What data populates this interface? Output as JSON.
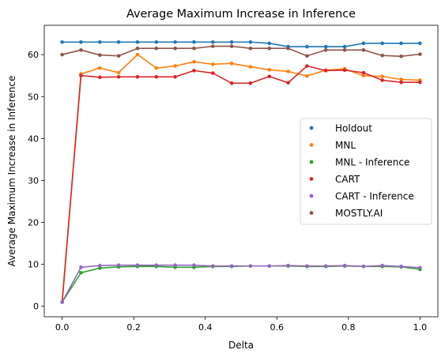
{
  "chart_data": {
    "type": "line",
    "title": "Average Maximum Increase in Inference",
    "xlabel": "Delta",
    "ylabel": "Average Maximum Increase in Inference",
    "xlim": [
      -0.05,
      1.05
    ],
    "ylim": [
      -2.5,
      67
    ],
    "xticks": [
      0.0,
      0.2,
      0.4,
      0.6,
      0.8,
      1.0
    ],
    "xtick_labels": [
      "0.0",
      "0.2",
      "0.4",
      "0.6",
      "0.8",
      "1.0"
    ],
    "yticks": [
      0,
      10,
      20,
      30,
      40,
      50,
      60
    ],
    "ytick_labels": [
      "0",
      "10",
      "20",
      "30",
      "40",
      "50",
      "60"
    ],
    "legend_position": "center-right",
    "grid": false,
    "x": [
      0.0,
      0.0526,
      0.1053,
      0.1579,
      0.2105,
      0.2632,
      0.3158,
      0.3684,
      0.4211,
      0.4737,
      0.5263,
      0.5789,
      0.6316,
      0.6842,
      0.7368,
      0.7895,
      0.8421,
      0.8947,
      0.9474,
      1.0
    ],
    "series": [
      {
        "name": "Holdout",
        "color": "#1f77b4",
        "values": [
          63.0,
          63.0,
          63.0,
          63.0,
          63.0,
          63.0,
          63.0,
          63.0,
          63.0,
          63.0,
          63.0,
          62.7,
          61.9,
          61.9,
          61.9,
          61.9,
          62.7,
          62.7,
          62.7,
          62.7
        ]
      },
      {
        "name": "MNL",
        "color": "#ff7f0e",
        "values": [
          1.0,
          55.4,
          56.8,
          55.7,
          60.0,
          56.8,
          57.3,
          58.3,
          57.7,
          57.9,
          57.1,
          56.4,
          56.0,
          54.9,
          56.3,
          56.6,
          55.0,
          54.8,
          54.1,
          53.9
        ]
      },
      {
        "name": "MNL - Inference",
        "color": "#2ca02c",
        "values": [
          1.0,
          8.0,
          9.1,
          9.4,
          9.5,
          9.5,
          9.3,
          9.3,
          9.5,
          9.5,
          9.6,
          9.6,
          9.6,
          9.5,
          9.5,
          9.6,
          9.5,
          9.5,
          9.4,
          8.8
        ]
      },
      {
        "name": "CART",
        "color": "#d62728",
        "values": [
          1.0,
          55.0,
          54.6,
          54.7,
          54.7,
          54.7,
          54.7,
          56.2,
          55.6,
          53.2,
          53.2,
          54.8,
          53.3,
          57.3,
          56.2,
          56.3,
          55.7,
          53.9,
          53.4,
          53.4
        ]
      },
      {
        "name": "CART - Inference",
        "color": "#9467bd",
        "values": [
          1.0,
          9.3,
          9.7,
          9.8,
          9.8,
          9.8,
          9.8,
          9.8,
          9.6,
          9.6,
          9.6,
          9.6,
          9.7,
          9.6,
          9.6,
          9.7,
          9.5,
          9.7,
          9.5,
          9.2
        ]
      },
      {
        "name": "MOSTLY.AI",
        "color": "#8c564b",
        "values": [
          60.0,
          61.1,
          59.9,
          59.7,
          61.5,
          61.5,
          61.5,
          61.5,
          62.0,
          62.0,
          61.5,
          61.5,
          61.5,
          59.7,
          61.1,
          61.1,
          61.1,
          59.8,
          59.6,
          60.1
        ]
      }
    ]
  }
}
